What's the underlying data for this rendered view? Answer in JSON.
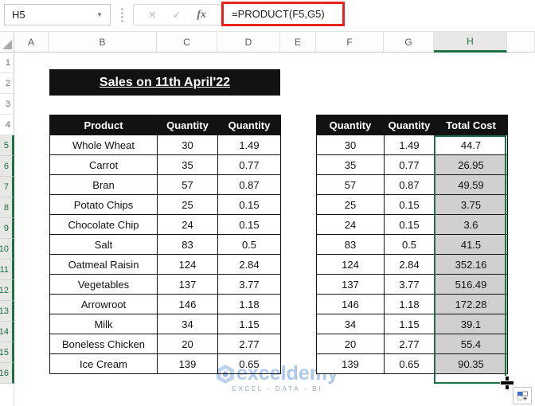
{
  "formula_bar": {
    "name_box_value": "H5",
    "name_box_dropdown_icon": "▼",
    "cancel_icon": "✕",
    "enter_icon": "✓",
    "insert_function_label": "fx",
    "formula": "=PRODUCT(F5,G5)"
  },
  "grid": {
    "columns": [
      "A",
      "B",
      "C",
      "D",
      "E",
      "F",
      "G",
      "H"
    ],
    "rows": [
      "1",
      "2",
      "3",
      "4",
      "5",
      "6",
      "7",
      "8",
      "9",
      "10",
      "11",
      "12",
      "13",
      "14",
      "15",
      "16"
    ],
    "selection": {
      "active_cell": "H5",
      "column": "H",
      "row_start": 5,
      "row_end": 16
    }
  },
  "title": "Sales on 11th April'22",
  "left_table": {
    "headers": [
      "Product",
      "Quantity",
      "Quantity"
    ],
    "rows": [
      [
        "Whole Wheat",
        "30",
        "1.49"
      ],
      [
        "Carrot",
        "35",
        "0.77"
      ],
      [
        "Bran",
        "57",
        "0.87"
      ],
      [
        "Potato Chips",
        "25",
        "0.15"
      ],
      [
        "Chocolate Chip",
        "24",
        "0.15"
      ],
      [
        "Salt",
        "83",
        "0.5"
      ],
      [
        "Oatmeal Raisin",
        "124",
        "2.84"
      ],
      [
        "Vegetables",
        "137",
        "3.77"
      ],
      [
        "Arrowroot",
        "146",
        "1.18"
      ],
      [
        "Milk",
        "34",
        "1.15"
      ],
      [
        "Boneless Chicken",
        "20",
        "2.77"
      ],
      [
        "Ice Cream",
        "139",
        "0.65"
      ]
    ]
  },
  "right_table": {
    "headers": [
      "Quantity",
      "Quantity",
      "Total Cost"
    ],
    "rows": [
      [
        "30",
        "1.49",
        "44.7"
      ],
      [
        "35",
        "0.77",
        "26.95"
      ],
      [
        "57",
        "0.87",
        "49.59"
      ],
      [
        "25",
        "0.15",
        "3.75"
      ],
      [
        "24",
        "0.15",
        "3.6"
      ],
      [
        "83",
        "0.5",
        "41.5"
      ],
      [
        "124",
        "2.84",
        "352.16"
      ],
      [
        "137",
        "3.77",
        "516.49"
      ],
      [
        "146",
        "1.18",
        "172.28"
      ],
      [
        "34",
        "1.15",
        "39.1"
      ],
      [
        "20",
        "2.77",
        "55.4"
      ],
      [
        "139",
        "0.65",
        "90.35"
      ]
    ]
  },
  "watermark": {
    "brand": "exceldemy",
    "tagline": "EXCEL - DATA - BI"
  },
  "colors": {
    "accent_green": "#1e7145",
    "header_black": "#121212",
    "selection_gray": "#d2d0ce",
    "annotation_red": "#e8231d",
    "watermark_blue": "#adc8e8"
  }
}
